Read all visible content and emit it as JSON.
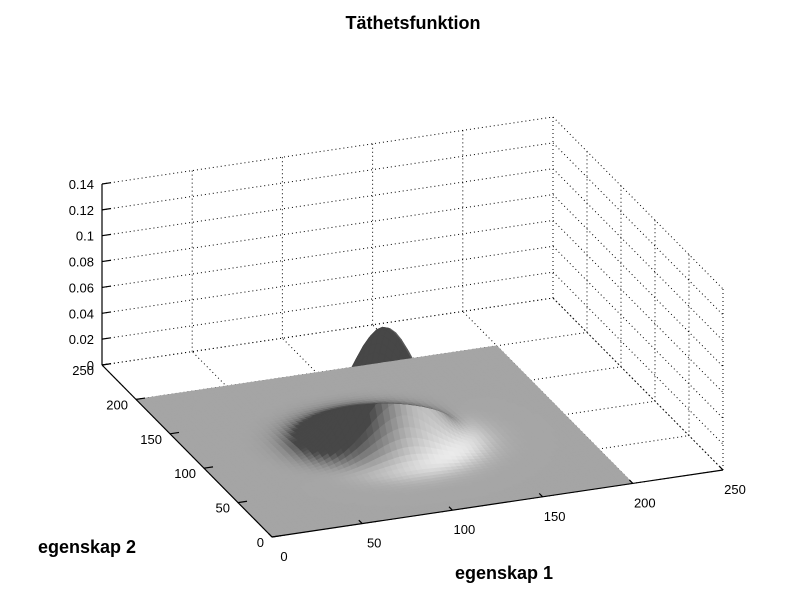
{
  "chart_data": {
    "type": "surface",
    "title": "Täthetsfunktion",
    "xlabel": "egenskap 1",
    "ylabel": "egenskap 2",
    "zlabel": "",
    "xlim": [
      0,
      250
    ],
    "ylim": [
      0,
      250
    ],
    "zlim": [
      0,
      0.14
    ],
    "xticks": [
      "0",
      "50",
      "100",
      "150",
      "200",
      "250"
    ],
    "yticks": [
      "0",
      "50",
      "100",
      "150",
      "200",
      "250"
    ],
    "zticks": [
      "0",
      "0.02",
      "0.04",
      "0.06",
      "0.08",
      "0.1",
      "0.12",
      "0.14"
    ],
    "surface": {
      "x_range": [
        0,
        200
      ],
      "y_range": [
        0,
        200
      ],
      "peak_x": 100,
      "peak_y": 100,
      "peak_z": 0.088,
      "sigma_x": 18,
      "sigma_y": 18
    },
    "grid": true
  }
}
